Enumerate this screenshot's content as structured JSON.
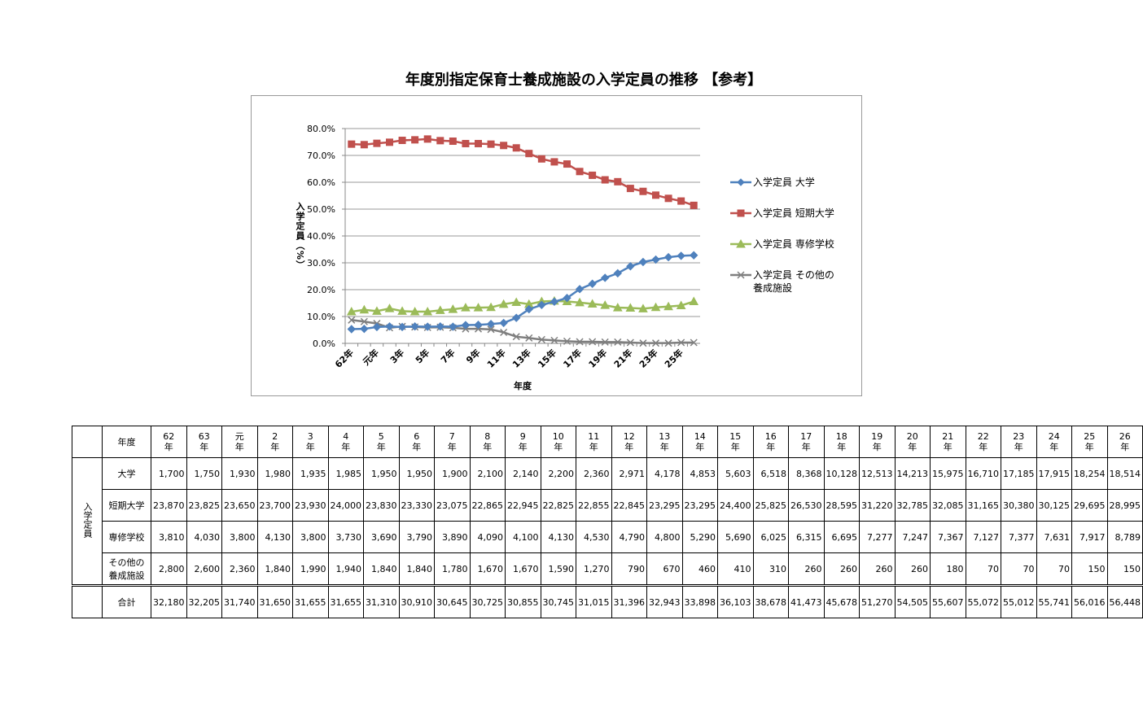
{
  "chart_data": {
    "type": "line",
    "title": "年度別指定保育士養成施設の入学定員の推移 【参考】",
    "x_label": "年度",
    "y_label": "入学定員（%）",
    "categories": [
      "62年",
      null,
      "元年",
      null,
      "3年",
      null,
      "5年",
      null,
      "7年",
      null,
      "9年",
      null,
      "11年",
      null,
      "13年",
      null,
      "15年",
      null,
      "17年",
      null,
      "19年",
      null,
      "21年",
      null,
      "23年",
      null,
      "25年",
      null
    ],
    "ylim": [
      0,
      80
    ],
    "yticks": [
      {
        "value": 0,
        "label": "0.0%"
      },
      {
        "value": 10,
        "label": "10.0%"
      },
      {
        "value": 20,
        "label": "20.0%"
      },
      {
        "value": 30,
        "label": "30.0%"
      },
      {
        "value": 40,
        "label": "40.0%"
      },
      {
        "value": 50,
        "label": "50.0%"
      },
      {
        "value": 60,
        "label": "60.0%"
      },
      {
        "value": 70,
        "label": "70.0%"
      },
      {
        "value": 80,
        "label": "80.0%"
      }
    ],
    "grid": true,
    "legend": "right",
    "series": [
      {
        "name": "入学定員 大学",
        "color": "#4f81bd",
        "values": [
          5.3,
          5.4,
          6.1,
          6.3,
          6.1,
          6.3,
          6.2,
          6.3,
          6.2,
          6.8,
          6.9,
          7.2,
          7.6,
          9.5,
          12.7,
          14.3,
          15.5,
          16.9,
          20.2,
          22.2,
          24.4,
          26.1,
          28.7,
          30.3,
          31.2,
          32.1,
          32.6,
          32.8
        ]
      },
      {
        "name": "入学定員 短期大学",
        "color": "#c0504d",
        "values": [
          74.2,
          74.0,
          74.5,
          74.9,
          75.6,
          75.8,
          76.1,
          75.5,
          75.3,
          74.4,
          74.4,
          74.2,
          73.7,
          72.8,
          70.7,
          68.7,
          67.6,
          66.8,
          64.0,
          62.6,
          60.9,
          60.2,
          57.7,
          56.6,
          55.2,
          54.0,
          53.0,
          51.4
        ]
      },
      {
        "name": "入学定員 専修学校",
        "color": "#9bbb59",
        "values": [
          11.8,
          12.5,
          12.0,
          13.0,
          12.0,
          11.8,
          11.8,
          12.3,
          12.7,
          13.3,
          13.3,
          13.4,
          14.6,
          15.3,
          14.6,
          15.6,
          15.8,
          15.6,
          15.2,
          14.7,
          14.2,
          13.3,
          13.2,
          12.9,
          13.4,
          13.7,
          14.1,
          15.6
        ]
      },
      {
        "name": "入学定員 その他の養成施設",
        "color": "#7f7f7f",
        "values": [
          8.7,
          8.1,
          7.4,
          5.8,
          6.3,
          6.1,
          5.9,
          6.0,
          5.8,
          5.4,
          5.4,
          5.2,
          4.1,
          2.5,
          2.0,
          1.4,
          1.1,
          0.8,
          0.6,
          0.6,
          0.5,
          0.5,
          0.3,
          0.1,
          0.1,
          0.1,
          0.3,
          0.3
        ]
      }
    ]
  },
  "table": {
    "header_label": "年度",
    "columns": [
      "62年",
      "63年",
      "元年",
      "2年",
      "3年",
      "4年",
      "5年",
      "6年",
      "7年",
      "8年",
      "9年",
      "10年",
      "11年",
      "12年",
      "13年",
      "14年",
      "15年",
      "16年",
      "17年",
      "18年",
      "19年",
      "20年",
      "21年",
      "22年",
      "23年",
      "24年",
      "25年",
      "26年"
    ],
    "group_label": "入学定員",
    "rows": [
      {
        "label": "大学",
        "values": [
          "1,700",
          "1,750",
          "1,930",
          "1,980",
          "1,935",
          "1,985",
          "1,950",
          "1,950",
          "1,900",
          "2,100",
          "2,140",
          "2,200",
          "2,360",
          "2,971",
          "4,178",
          "4,853",
          "5,603",
          "6,518",
          "8,368",
          "10,128",
          "12,513",
          "14,213",
          "15,975",
          "16,710",
          "17,185",
          "17,915",
          "18,254",
          "18,514"
        ]
      },
      {
        "label": "短期大学",
        "values": [
          "23,870",
          "23,825",
          "23,650",
          "23,700",
          "23,930",
          "24,000",
          "23,830",
          "23,330",
          "23,075",
          "22,865",
          "22,945",
          "22,825",
          "22,855",
          "22,845",
          "23,295",
          "23,295",
          "24,400",
          "25,825",
          "26,530",
          "28,595",
          "31,220",
          "32,785",
          "32,085",
          "31,165",
          "30,380",
          "30,125",
          "29,695",
          "28,995"
        ]
      },
      {
        "label": "専修学校",
        "values": [
          "3,810",
          "4,030",
          "3,800",
          "4,130",
          "3,800",
          "3,730",
          "3,690",
          "3,790",
          "3,890",
          "4,090",
          "4,100",
          "4,130",
          "4,530",
          "4,790",
          "4,800",
          "5,290",
          "5,690",
          "6,025",
          "6,315",
          "6,695",
          "7,277",
          "7,247",
          "7,367",
          "7,127",
          "7,377",
          "7,631",
          "7,917",
          "8,789"
        ]
      },
      {
        "label": "その他の養成施設",
        "values": [
          "2,800",
          "2,600",
          "2,360",
          "1,840",
          "1,990",
          "1,940",
          "1,840",
          "1,840",
          "1,780",
          "1,670",
          "1,670",
          "1,590",
          "1,270",
          "790",
          "670",
          "460",
          "410",
          "310",
          "260",
          "260",
          "260",
          "260",
          "180",
          "70",
          "70",
          "70",
          "150",
          "150"
        ]
      }
    ],
    "total": {
      "label": "合計",
      "values": [
        "32,180",
        "32,205",
        "31,740",
        "31,650",
        "31,655",
        "31,655",
        "31,310",
        "30,910",
        "30,645",
        "30,725",
        "30,855",
        "30,745",
        "31,015",
        "31,396",
        "32,943",
        "33,898",
        "36,103",
        "38,678",
        "41,473",
        "45,678",
        "51,270",
        "54,505",
        "55,607",
        "55,072",
        "55,012",
        "55,741",
        "56,016",
        "56,448"
      ]
    }
  }
}
